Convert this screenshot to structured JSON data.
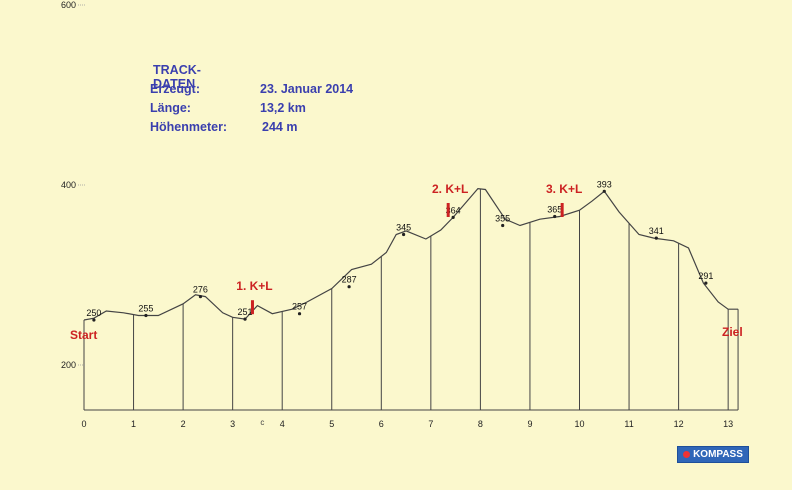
{
  "track_info": {
    "heading": "TRACK-DATEN",
    "rows": [
      {
        "label": "Erzeugt:",
        "value": "23. Januar 2014"
      },
      {
        "label": "Länge:",
        "value": "13,2 km"
      },
      {
        "label": "Höhenmeter:",
        "value": "244 m"
      }
    ]
  },
  "brand": "KOMPASS",
  "colors": {
    "background": "#fbf8cd",
    "info_text": "#3a3fae",
    "profile_line": "#444444",
    "marker_red": "#cc2222"
  },
  "chart_data": {
    "type": "line",
    "title": "",
    "xlabel": "",
    "ylabel": "",
    "xlim": [
      0,
      13.2
    ],
    "ylim": [
      150,
      650
    ],
    "x_ticks": [
      0,
      1,
      2,
      3,
      4,
      5,
      6,
      7,
      8,
      9,
      10,
      11,
      12,
      13
    ],
    "x_tick_labels": [
      "0",
      "1",
      "2",
      "3",
      "4",
      "5",
      "6",
      "7",
      "8",
      "9",
      "10",
      "11",
      "12",
      "13"
    ],
    "y_ticks": [
      200,
      400,
      600
    ],
    "y_tick_labels": [
      "200",
      "400",
      "600"
    ],
    "profile": {
      "x": [
        0,
        0.2,
        0.45,
        0.8,
        1.1,
        1.5,
        2.0,
        2.25,
        2.45,
        2.8,
        3.0,
        3.25,
        3.5,
        3.8,
        4.2,
        4.5,
        5.0,
        5.4,
        5.8,
        6.1,
        6.3,
        6.5,
        6.9,
        7.2,
        7.45,
        7.7,
        7.95,
        8.1,
        8.5,
        8.8,
        9.2,
        9.6,
        10.0,
        10.25,
        10.5,
        10.8,
        11.2,
        11.5,
        11.9,
        12.2,
        12.5,
        12.8,
        13.0,
        13.2
      ],
      "y": [
        250,
        252,
        260,
        258,
        255,
        255,
        268,
        278,
        276,
        258,
        253,
        251,
        266,
        257,
        262,
        270,
        285,
        306,
        312,
        325,
        345,
        349,
        340,
        350,
        364,
        380,
        396,
        395,
        362,
        355,
        362,
        365,
        372,
        382,
        393,
        370,
        345,
        341,
        338,
        330,
        291,
        270,
        262,
        262
      ]
    },
    "point_labels": [
      {
        "x": 0.2,
        "y": 250,
        "label": "250"
      },
      {
        "x": 1.25,
        "y": 255,
        "label": "255"
      },
      {
        "x": 2.35,
        "y": 276,
        "label": "276"
      },
      {
        "x": 3.25,
        "y": 251,
        "label": "251"
      },
      {
        "x": 4.35,
        "y": 257,
        "label": "257"
      },
      {
        "x": 5.35,
        "y": 287,
        "label": "287"
      },
      {
        "x": 6.45,
        "y": 345,
        "label": "345"
      },
      {
        "x": 7.45,
        "y": 364,
        "label": "364"
      },
      {
        "x": 8.45,
        "y": 355,
        "label": "355"
      },
      {
        "x": 9.5,
        "y": 365,
        "label": "365"
      },
      {
        "x": 10.5,
        "y": 393,
        "label": "393"
      },
      {
        "x": 11.55,
        "y": 341,
        "label": "341"
      },
      {
        "x": 12.55,
        "y": 291,
        "label": "291"
      }
    ],
    "stops": [
      {
        "x": 3.4,
        "y": 262,
        "label": "1. K+L"
      },
      {
        "x": 7.35,
        "y": 370,
        "label": "2. K+L"
      },
      {
        "x": 9.65,
        "y": 370,
        "label": "3. K+L"
      }
    ],
    "endpoint_labels": {
      "start": "Start",
      "finish": "Ziel"
    },
    "extra_marker": {
      "x": 3.6,
      "label": "c"
    },
    "grid": false,
    "legend": "none"
  }
}
